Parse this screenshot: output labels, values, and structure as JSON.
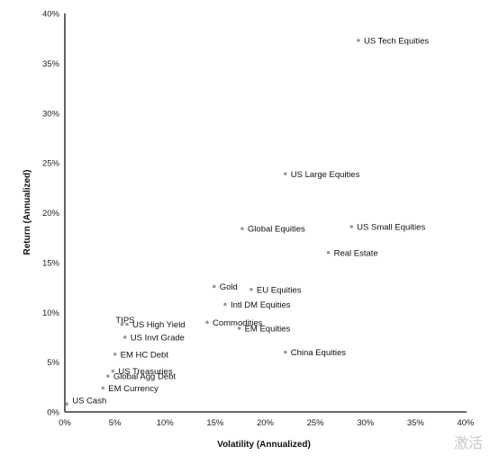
{
  "chart_data": {
    "type": "scatter",
    "title": "",
    "xlabel": "Volatility (Annualized)",
    "ylabel": "Return (Annualized)",
    "xlim": [
      0,
      40
    ],
    "ylim": [
      0,
      40
    ],
    "x_ticks": [
      "0%",
      "5%",
      "10%",
      "15%",
      "20%",
      "25%",
      "30%",
      "35%",
      "40%"
    ],
    "y_ticks": [
      "0%",
      "5%",
      "10%",
      "15%",
      "20%",
      "25%",
      "30%",
      "35%",
      "40%"
    ],
    "grid": false,
    "points": [
      {
        "label": "US Tech Equities",
        "x": 29.3,
        "y": 37.3
      },
      {
        "label": "US Large Equities",
        "x": 22.0,
        "y": 23.9
      },
      {
        "label": "Global Equities",
        "x": 17.7,
        "y": 18.4
      },
      {
        "label": "US Small Equities",
        "x": 28.6,
        "y": 18.6
      },
      {
        "label": "Real Estate",
        "x": 26.3,
        "y": 16.0
      },
      {
        "label": "Gold",
        "x": 14.9,
        "y": 12.6
      },
      {
        "label": "EU Equities",
        "x": 18.6,
        "y": 12.3
      },
      {
        "label": "Intl DM Equities",
        "x": 16.0,
        "y": 10.8
      },
      {
        "label": "Commodities",
        "x": 14.2,
        "y": 9.0
      },
      {
        "label": "EM Equities",
        "x": 17.4,
        "y": 8.4
      },
      {
        "label": "China Equities",
        "x": 22.0,
        "y": 6.0
      },
      {
        "label": "TIPS",
        "x": 5.7,
        "y": 8.8
      },
      {
        "label": "US High Yield",
        "x": 6.2,
        "y": 8.8
      },
      {
        "label": "US Invt Grade",
        "x": 6.0,
        "y": 7.5
      },
      {
        "label": "EM HC Debt",
        "x": 5.0,
        "y": 5.8
      },
      {
        "label": "US Treasuries",
        "x": 4.8,
        "y": 4.1
      },
      {
        "label": "Global Agg Debt",
        "x": 4.3,
        "y": 3.6
      },
      {
        "label": "EM Currency",
        "x": 3.8,
        "y": 2.4
      },
      {
        "label": "US Cash",
        "x": 0.2,
        "y": 0.8
      }
    ]
  },
  "watermark": "激活"
}
